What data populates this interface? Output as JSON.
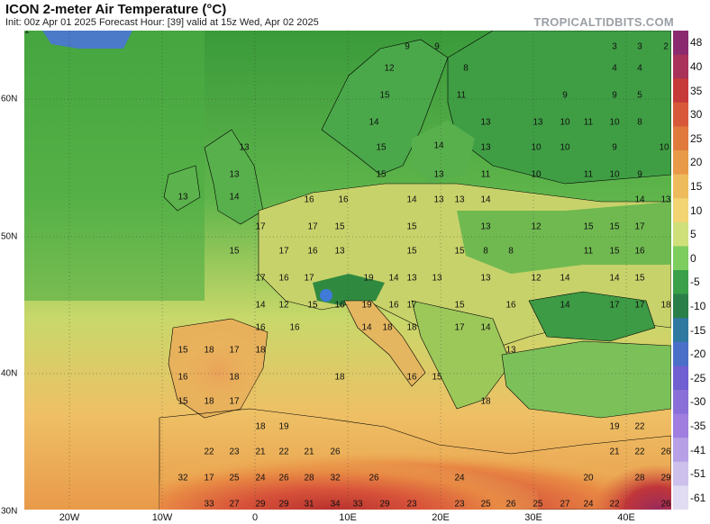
{
  "header": {
    "title": "ICON 2-meter Air Temperature (°C)",
    "subtitle": "Init: 00z Apr 01 2025   Forecast Hour: [39]   valid at 15z Wed, Apr 02 2025",
    "brand": "TROPICALTIDBITS.COM"
  },
  "colorbar": {
    "labels": [
      "48",
      "40",
      "35",
      "30",
      "25",
      "20",
      "15",
      "10",
      "5",
      "0",
      "-5",
      "-10",
      "-15",
      "-20",
      "-25",
      "-30",
      "-35",
      "-41",
      "-51",
      "-61"
    ],
    "colors": [
      "#8b2a6f",
      "#a8325a",
      "#c73a3a",
      "#d8593a",
      "#e07a3c",
      "#e89a48",
      "#eebb5c",
      "#f2d472",
      "#cfe07a",
      "#7ccd5e",
      "#3aa04a",
      "#2a7f48",
      "#2f78a0",
      "#4a6fc8",
      "#6f5fd0",
      "#8a6fd8",
      "#a07ee0",
      "#b8a0e6",
      "#cdc0ec",
      "#e2dcf2"
    ]
  },
  "latitudes": [
    "60N",
    "50N",
    "40N",
    "30N"
  ],
  "longitudes": [
    "20W",
    "10W",
    "0",
    "10E",
    "20E",
    "30E",
    "40E"
  ],
  "temperatures": [
    {
      "v": "9"
    },
    {
      "v": "9"
    },
    {
      "v": "3"
    },
    {
      "v": "3"
    },
    {
      "v": "2"
    },
    {
      "v": "12"
    },
    {
      "v": "8"
    },
    {
      "v": "4"
    },
    {
      "v": "4"
    },
    {
      "v": "15"
    },
    {
      "v": "11"
    },
    {
      "v": "9"
    },
    {
      "v": "9"
    },
    {
      "v": "5"
    },
    {
      "v": "14"
    },
    {
      "v": "13"
    },
    {
      "v": "13"
    },
    {
      "v": "10"
    },
    {
      "v": "11"
    },
    {
      "v": "10"
    },
    {
      "v": "8"
    },
    {
      "v": "13"
    },
    {
      "v": "15"
    },
    {
      "v": "14"
    },
    {
      "v": "13"
    },
    {
      "v": "10"
    },
    {
      "v": "10"
    },
    {
      "v": "9"
    },
    {
      "v": "10"
    },
    {
      "v": "13"
    },
    {
      "v": "15"
    },
    {
      "v": "13"
    },
    {
      "v": "11"
    },
    {
      "v": "10"
    },
    {
      "v": "11"
    },
    {
      "v": "10"
    },
    {
      "v": "9"
    },
    {
      "v": "13"
    },
    {
      "v": "14"
    },
    {
      "v": "16"
    },
    {
      "v": "16"
    },
    {
      "v": "14"
    },
    {
      "v": "13"
    },
    {
      "v": "13"
    },
    {
      "v": "14"
    },
    {
      "v": "14"
    },
    {
      "v": "13"
    },
    {
      "v": "17"
    },
    {
      "v": "17"
    },
    {
      "v": "15"
    },
    {
      "v": "15"
    },
    {
      "v": "13"
    },
    {
      "v": "12"
    },
    {
      "v": "15"
    },
    {
      "v": "15"
    },
    {
      "v": "17"
    },
    {
      "v": "15"
    },
    {
      "v": "17"
    },
    {
      "v": "16"
    },
    {
      "v": "13"
    },
    {
      "v": "15"
    },
    {
      "v": "15"
    },
    {
      "v": "8"
    },
    {
      "v": "8"
    },
    {
      "v": "11"
    },
    {
      "v": "15"
    },
    {
      "v": "16"
    },
    {
      "v": "17"
    },
    {
      "v": "16"
    },
    {
      "v": "17"
    },
    {
      "v": "19"
    },
    {
      "v": "14"
    },
    {
      "v": "13"
    },
    {
      "v": "13"
    },
    {
      "v": "13"
    },
    {
      "v": "12"
    },
    {
      "v": "14"
    },
    {
      "v": "14"
    },
    {
      "v": "15"
    },
    {
      "v": "14"
    },
    {
      "v": "12"
    },
    {
      "v": "15"
    },
    {
      "v": "16"
    },
    {
      "v": "19"
    },
    {
      "v": "16"
    },
    {
      "v": "17"
    },
    {
      "v": "15"
    },
    {
      "v": "16"
    },
    {
      "v": "14"
    },
    {
      "v": "17"
    },
    {
      "v": "17"
    },
    {
      "v": "18"
    },
    {
      "v": "16"
    },
    {
      "v": "16"
    },
    {
      "v": "14"
    },
    {
      "v": "18"
    },
    {
      "v": "18"
    },
    {
      "v": "17"
    },
    {
      "v": "14"
    },
    {
      "v": "15"
    },
    {
      "v": "18"
    },
    {
      "v": "17"
    },
    {
      "v": "18"
    },
    {
      "v": "13"
    },
    {
      "v": "16"
    },
    {
      "v": "18"
    },
    {
      "v": "18"
    },
    {
      "v": "16"
    },
    {
      "v": "15"
    },
    {
      "v": "15"
    },
    {
      "v": "18"
    },
    {
      "v": "17"
    },
    {
      "v": "18"
    },
    {
      "v": "18"
    },
    {
      "v": "19"
    },
    {
      "v": "19"
    },
    {
      "v": "22"
    },
    {
      "v": "22"
    },
    {
      "v": "23"
    },
    {
      "v": "21"
    },
    {
      "v": "22"
    },
    {
      "v": "21"
    },
    {
      "v": "26"
    },
    {
      "v": "21"
    },
    {
      "v": "22"
    },
    {
      "v": "26"
    },
    {
      "v": "32"
    },
    {
      "v": "17"
    },
    {
      "v": "25"
    },
    {
      "v": "24"
    },
    {
      "v": "26"
    },
    {
      "v": "28"
    },
    {
      "v": "32"
    },
    {
      "v": "26"
    },
    {
      "v": "24"
    },
    {
      "v": "20"
    },
    {
      "v": "28"
    },
    {
      "v": "29"
    },
    {
      "v": "33"
    },
    {
      "v": "27"
    },
    {
      "v": "29"
    },
    {
      "v": "29"
    },
    {
      "v": "31"
    },
    {
      "v": "34"
    },
    {
      "v": "33"
    },
    {
      "v": "29"
    },
    {
      "v": "23"
    },
    {
      "v": "23"
    },
    {
      "v": "25"
    },
    {
      "v": "26"
    },
    {
      "v": "25"
    },
    {
      "v": "27"
    },
    {
      "v": "24"
    },
    {
      "v": "22"
    },
    {
      "v": "26"
    },
    {
      "v": "31"
    }
  ]
}
